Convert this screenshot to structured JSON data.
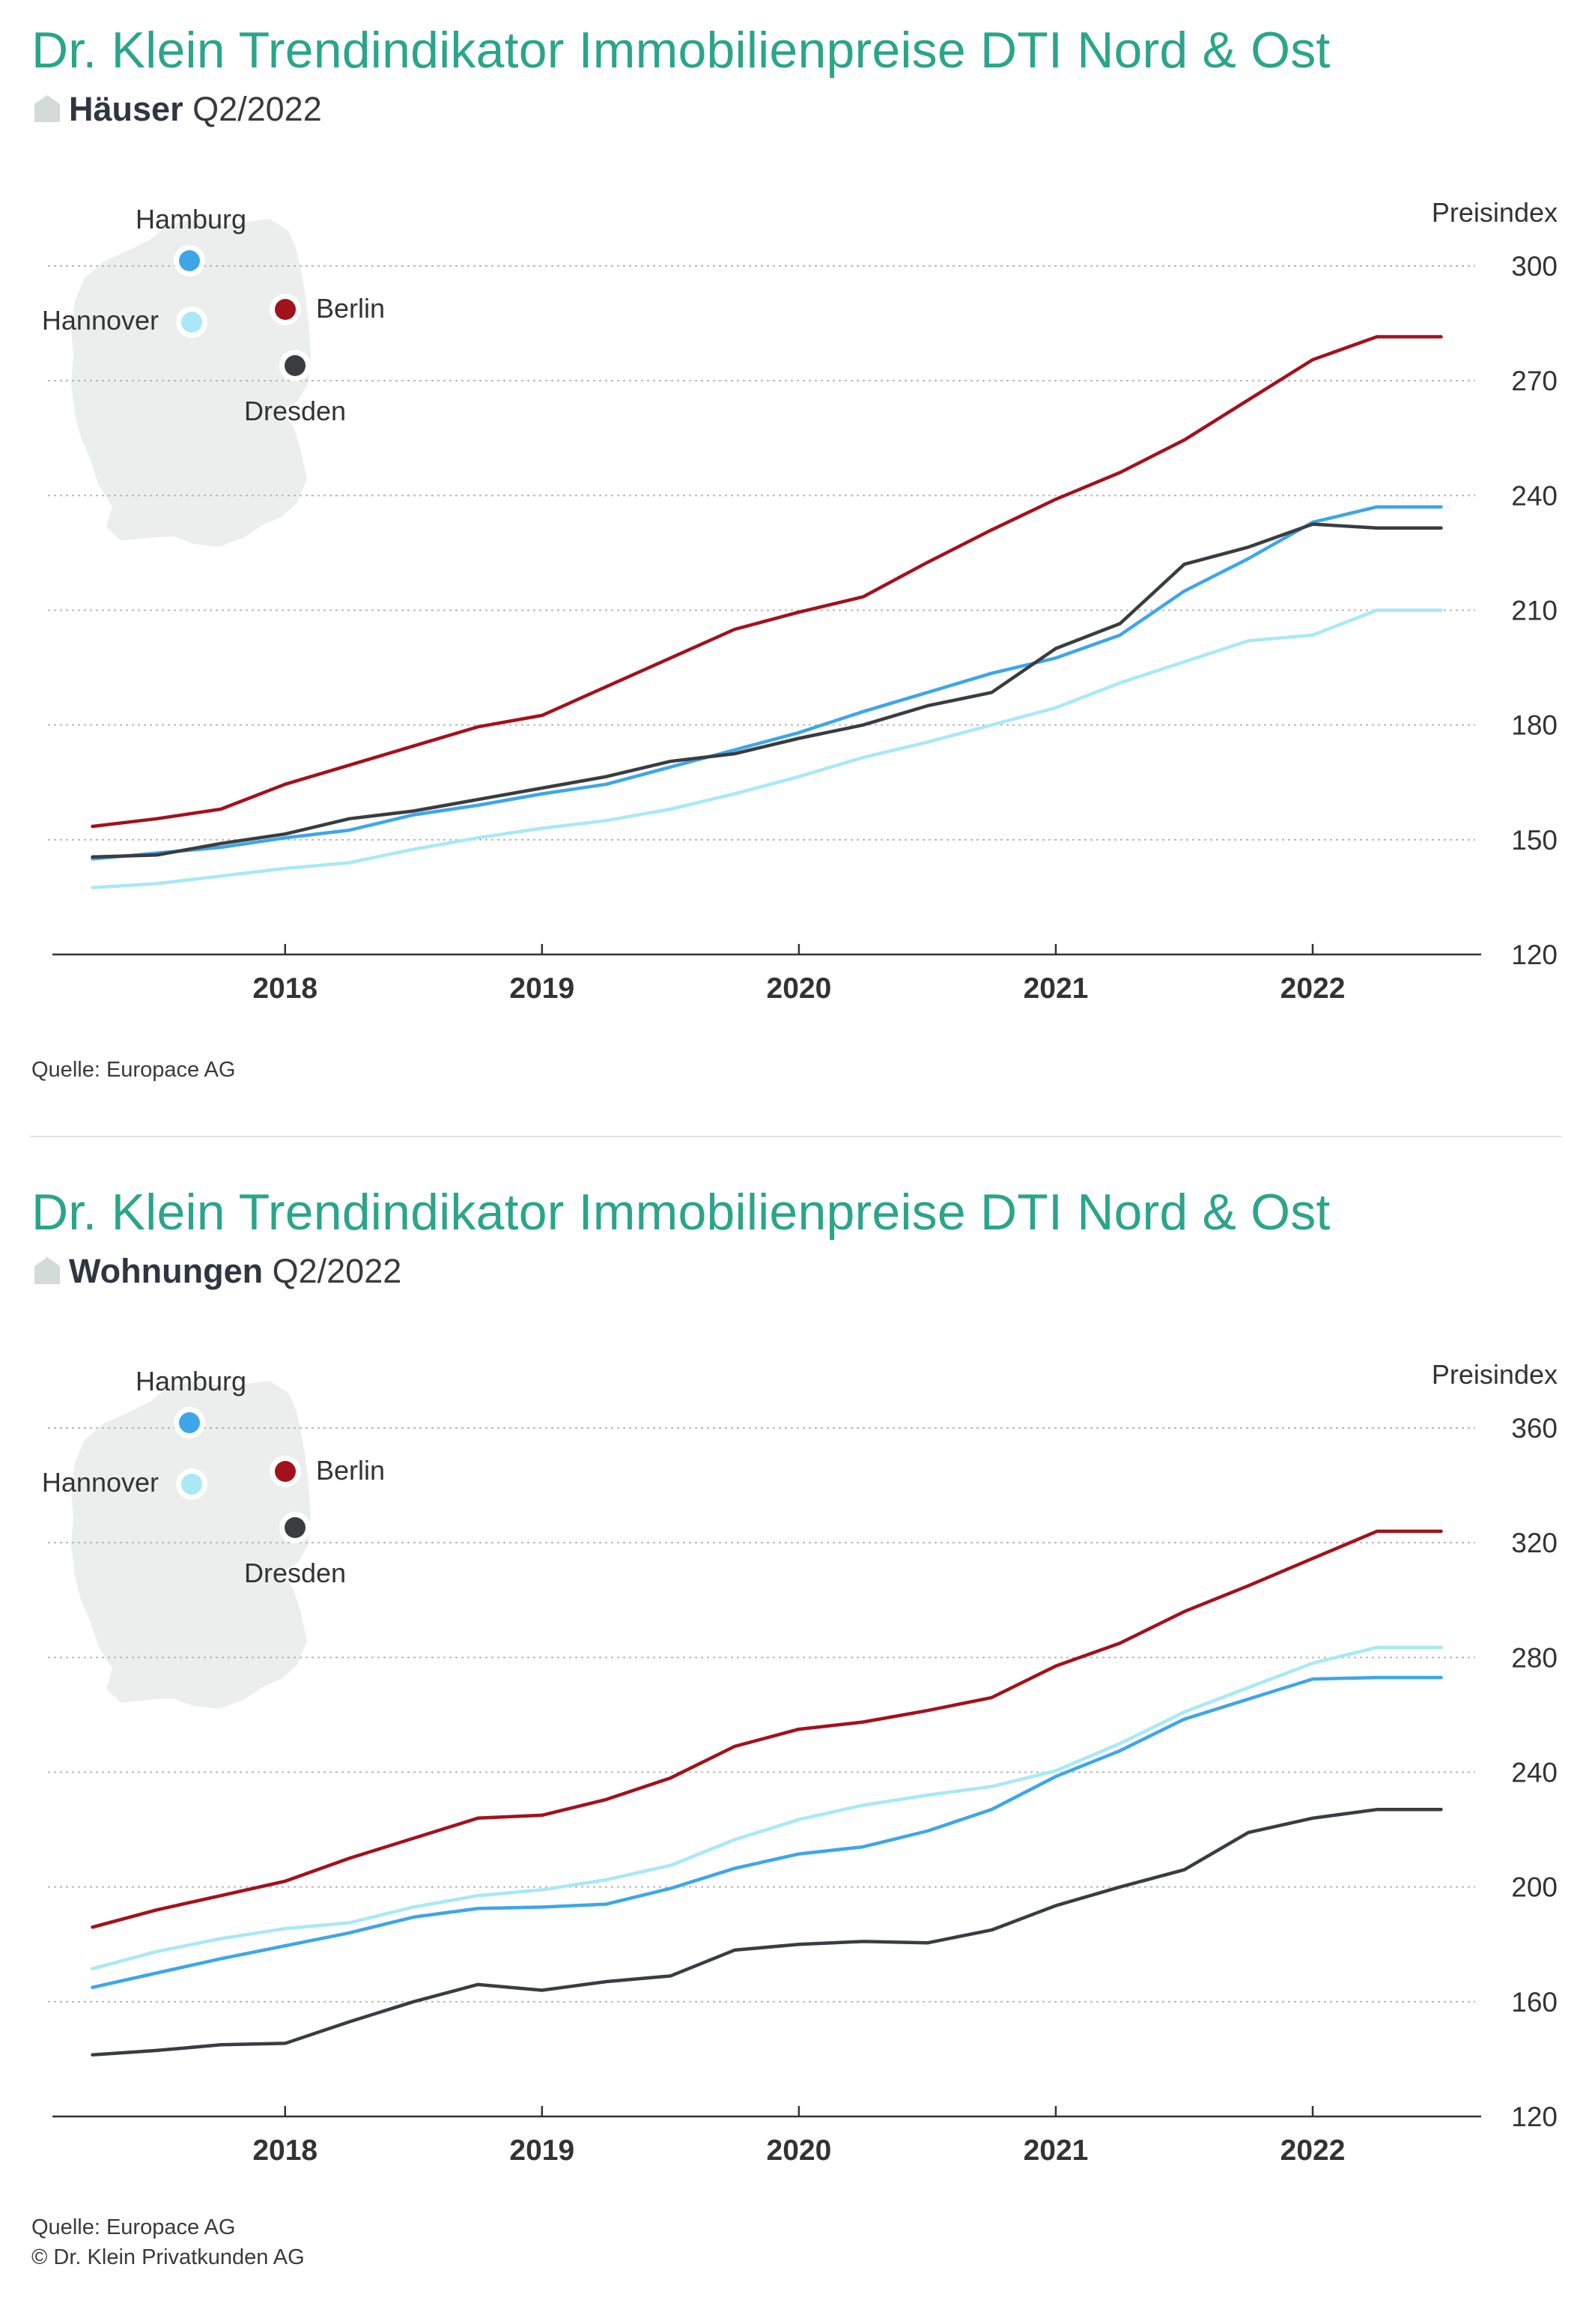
{
  "colors": {
    "Berlin": "#a3111c",
    "Hamburg": "#3ea6e8",
    "Hannover": "#a8e9f5",
    "Dresden": "#3a3d40",
    "title": "#2aa58a",
    "map": "#eceeee"
  },
  "panels": [
    {
      "title": "Dr. Klein Trendindikator Immobilienpreise DTI Nord & Ost",
      "subtitle_bold": "Häuser",
      "subtitle_rest": " Q2/2022",
      "icon": "house-icon",
      "source_lines": [
        "Quelle: Europace AG"
      ],
      "map_labels": {
        "Hamburg": "Hamburg",
        "Hannover": "Hannover",
        "Berlin": "Berlin",
        "Dresden": "Dresden"
      },
      "chart_data": {
        "type": "line",
        "ylabel": "Preisindex",
        "ylim": [
          120,
          300
        ],
        "yticks": [
          120,
          150,
          180,
          210,
          240,
          270,
          300
        ],
        "xlim": [
          2017.1,
          2022.65
        ],
        "xticks": [
          2018,
          2019,
          2020,
          2021,
          2022
        ],
        "x": [
          2017.25,
          2017.5,
          2017.75,
          2018.0,
          2018.25,
          2018.5,
          2018.75,
          2019.0,
          2019.25,
          2019.5,
          2019.75,
          2020.0,
          2020.25,
          2020.5,
          2020.75,
          2021.0,
          2021.25,
          2021.5,
          2021.75,
          2022.0,
          2022.25,
          2022.5
        ],
        "series": [
          {
            "name": "Berlin",
            "values": [
              153.5,
              155.5,
              158,
              164.5,
              169.5,
              174.5,
              179.5,
              182.5,
              190,
              197.5,
              205,
              209.5,
              213.5,
              222.5,
              231,
              239,
              246,
              254.5,
              265,
              275.5,
              281.5,
              281.5
            ]
          },
          {
            "name": "Hamburg",
            "values": [
              145,
              146.5,
              148,
              150.5,
              152.5,
              156.5,
              159,
              162,
              164.5,
              169,
              173.5,
              178,
              183.5,
              188.5,
              193.5,
              197.5,
              203.5,
              215,
              223.5,
              233,
              237,
              237
            ]
          },
          {
            "name": "Hannover",
            "values": [
              137.5,
              138.5,
              140.5,
              142.5,
              144,
              147.5,
              150.5,
              153,
              155,
              158,
              162,
              166.5,
              171.5,
              175.5,
              180,
              184.5,
              191,
              196.5,
              202,
              203.5,
              210,
              210
            ]
          },
          {
            "name": "Dresden",
            "values": [
              145.5,
              146,
              149,
              151.5,
              155.5,
              157.5,
              160.5,
              163.5,
              166.5,
              170.5,
              172.5,
              176.5,
              180,
              185,
              188.5,
              200,
              206.5,
              222,
              226.5,
              232.5,
              231.5,
              231.5
            ]
          }
        ]
      }
    },
    {
      "title": "Dr. Klein Trendindikator Immobilienpreise DTI Nord & Ost",
      "subtitle_bold": "Wohnungen",
      "subtitle_rest": " Q2/2022",
      "icon": "apartment-icon",
      "source_lines": [
        "Quelle: Europace AG",
        "© Dr. Klein Privatkunden AG"
      ],
      "map_labels": {
        "Hamburg": "Hamburg",
        "Hannover": "Hannover",
        "Berlin": "Berlin",
        "Dresden": "Dresden"
      },
      "chart_data": {
        "type": "line",
        "ylabel": "Preisindex",
        "ylim": [
          120,
          360
        ],
        "yticks": [
          120,
          160,
          200,
          240,
          280,
          320,
          360
        ],
        "xlim": [
          2017.1,
          2022.65
        ],
        "xticks": [
          2018,
          2019,
          2020,
          2021,
          2022
        ],
        "x": [
          2017.25,
          2017.5,
          2017.75,
          2018.0,
          2018.25,
          2018.5,
          2018.75,
          2019.0,
          2019.25,
          2019.5,
          2019.75,
          2020.0,
          2020.25,
          2020.5,
          2020.75,
          2021.0,
          2021.25,
          2021.5,
          2021.75,
          2022.0,
          2022.25,
          2022.5
        ],
        "series": [
          {
            "name": "Berlin",
            "values": [
              186,
              192,
              197,
              202,
              210,
              217,
              224,
              225,
              230.5,
              238,
              249,
              255,
              257.5,
              261.5,
              266,
              277,
              285,
              296,
              305,
              314.5,
              324,
              324
            ]
          },
          {
            "name": "Hamburg",
            "values": [
              165,
              170,
              175,
              179.5,
              184,
              189.5,
              192.5,
              193,
              194,
              199.5,
              206.5,
              211.5,
              214,
              219.5,
              227,
              238.5,
              247.5,
              258.5,
              265.5,
              272.5,
              273,
              273
            ]
          },
          {
            "name": "Hannover",
            "values": [
              171.5,
              177.5,
              182,
              185.5,
              187.5,
              193,
              197,
              199,
              202.5,
              207.5,
              216.5,
              223.5,
              228.5,
              232,
              235,
              240.5,
              250,
              261,
              269.5,
              278,
              283.5,
              283.5
            ]
          },
          {
            "name": "Dresden",
            "values": [
              141.5,
              143,
              145,
              145.5,
              153,
              160,
              166,
              164,
              167,
              169,
              178,
              180,
              181,
              180.5,
              185,
              193.5,
              200,
              206,
              219,
              224,
              227,
              227
            ]
          }
        ]
      }
    }
  ]
}
